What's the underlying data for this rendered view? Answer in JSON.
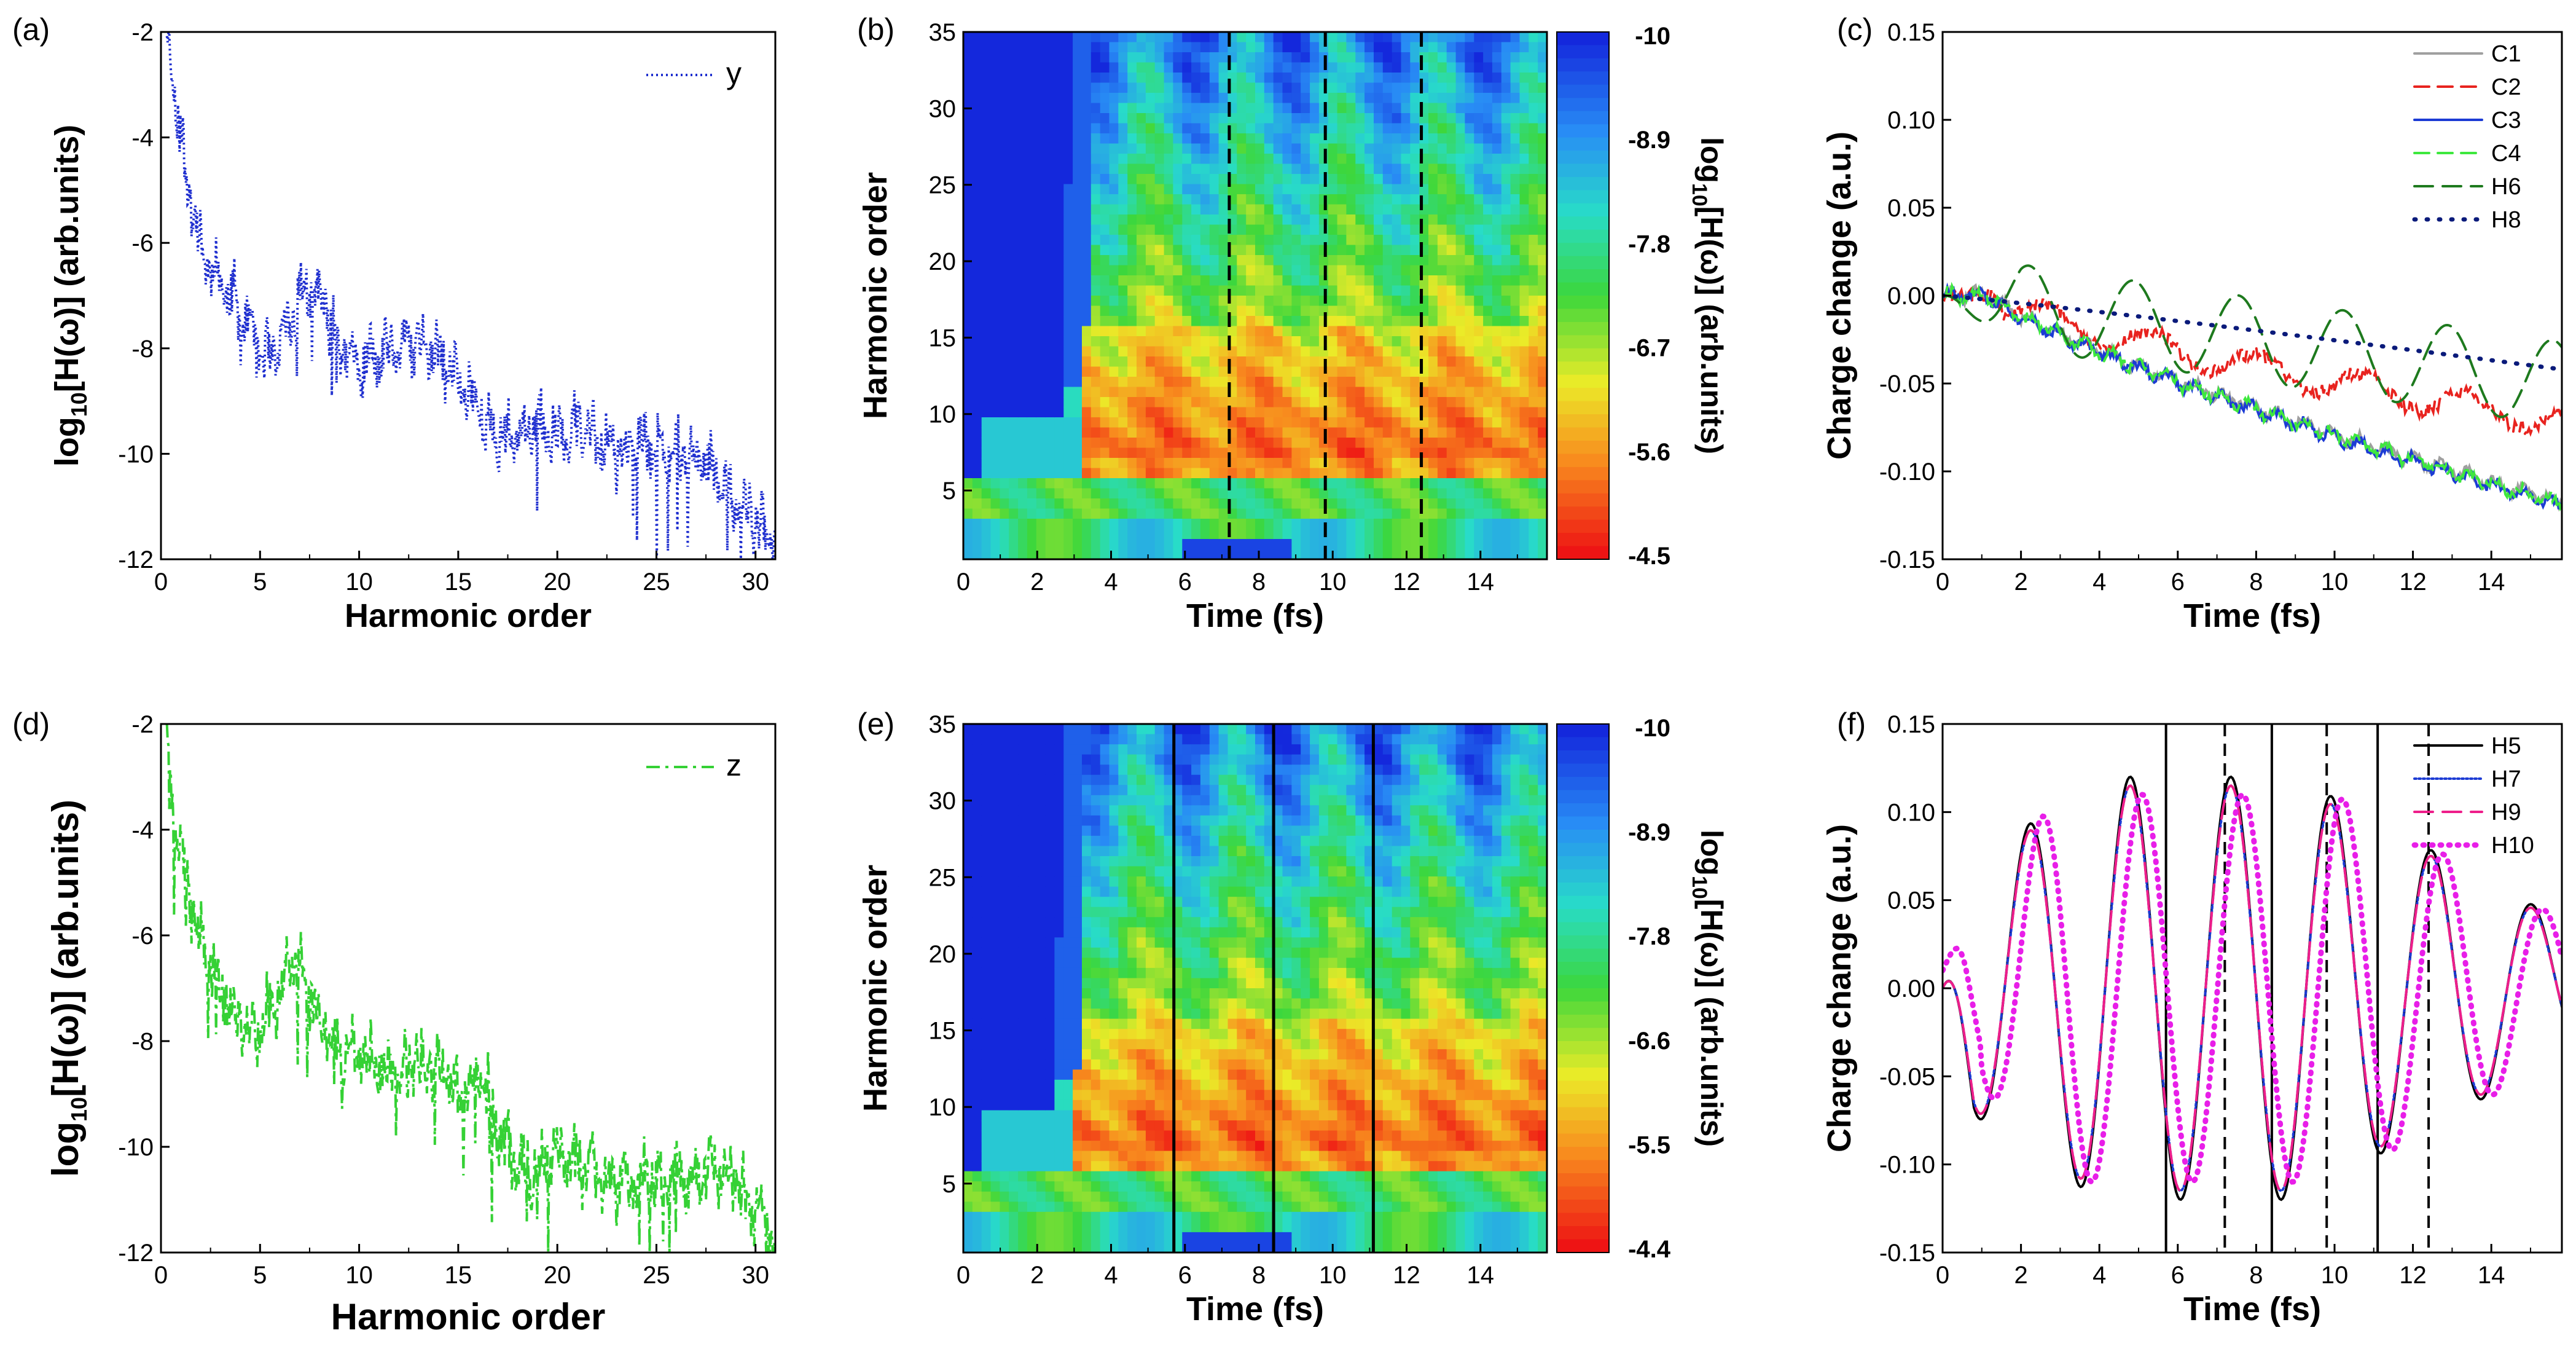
{
  "figure_title": "",
  "chart_data": [
    {
      "id": "a",
      "panel_label": "(a)",
      "type": "line",
      "xlabel": "Harmonic order",
      "ylabel_main": "log",
      "ylabel_sub": "10",
      "ylabel_rest": "[H(ω)] (arb.units)",
      "xlim": [
        0,
        31
      ],
      "ylim": [
        -12,
        -2
      ],
      "xticks": [
        "0",
        "5",
        "10",
        "15",
        "20",
        "25",
        "30"
      ],
      "yticks": [
        "-2",
        "-4",
        "-6",
        "-8",
        "-10",
        "-12"
      ],
      "series": [
        {
          "name": "y",
          "color": "#1f2fcf",
          "dash": "dotted",
          "envelope": [
            [
              0.4,
              -2
            ],
            [
              0.8,
              -3.5
            ],
            [
              1.2,
              -4.6
            ],
            [
              1.6,
              -5.3
            ],
            [
              2,
              -6.1
            ],
            [
              2.5,
              -6.4
            ],
            [
              3,
              -6.7
            ],
            [
              3.5,
              -7.0
            ],
            [
              4,
              -7.3
            ],
            [
              4.5,
              -7.6
            ],
            [
              5,
              -8.0
            ],
            [
              5.5,
              -8.3
            ],
            [
              6,
              -8.0
            ],
            [
              6.5,
              -7.5
            ],
            [
              7,
              -7.0
            ],
            [
              7.5,
              -6.9
            ],
            [
              8,
              -7.0
            ],
            [
              8.5,
              -7.4
            ],
            [
              9,
              -8.0
            ],
            [
              9.5,
              -8.2
            ],
            [
              10,
              -8.3
            ],
            [
              11,
              -8.2
            ],
            [
              12,
              -8.0
            ],
            [
              13,
              -7.9
            ],
            [
              14,
              -8.2
            ],
            [
              15,
              -8.6
            ],
            [
              16,
              -9.0
            ],
            [
              16.5,
              -9.6
            ],
            [
              17,
              -9.7
            ],
            [
              18,
              -9.6
            ],
            [
              19,
              -9.5
            ],
            [
              20,
              -9.6
            ],
            [
              21,
              -9.5
            ],
            [
              22,
              -9.7
            ],
            [
              23,
              -10.0
            ],
            [
              24,
              -9.8
            ],
            [
              25,
              -9.9
            ],
            [
              26,
              -10.0
            ],
            [
              27,
              -10.1
            ],
            [
              28,
              -10.3
            ],
            [
              29,
              -10.9
            ],
            [
              30,
              -11.2
            ],
            [
              31,
              -11.8
            ]
          ],
          "noise": 0.45,
          "seed": 11
        }
      ]
    },
    {
      "id": "b",
      "panel_label": "(b)",
      "type": "heatmap",
      "xlabel": "Time (fs)",
      "ylabel": "Harmonic order",
      "xlim": [
        0,
        15.8
      ],
      "ylim": [
        0.5,
        35
      ],
      "xticks": [
        "0",
        "2",
        "4",
        "6",
        "8",
        "10",
        "12",
        "14"
      ],
      "yticks": [
        "5",
        "10",
        "15",
        "20",
        "25",
        "30",
        "35"
      ],
      "colorbar_ticks": [
        "-10",
        "-8.9",
        "-7.8",
        "-6.7",
        "-5.6",
        "-4.5"
      ],
      "colorbar_label_main": "log",
      "colorbar_label_sub": "10",
      "colorbar_label_rest": "[H(ω)] (arb.units)",
      "vlines": [
        7.2,
        9.8,
        12.4
      ],
      "vline_style": "dashed",
      "onset_time": 3.2,
      "seed": 23
    },
    {
      "id": "c",
      "panel_label": "(c)",
      "type": "line",
      "xlabel": "Time (fs)",
      "ylabel": "Charge change (a.u.)",
      "xlim": [
        0,
        15.8
      ],
      "ylim": [
        -0.15,
        0.15
      ],
      "xticks": [
        "0",
        "2",
        "4",
        "6",
        "8",
        "10",
        "12",
        "14"
      ],
      "yticks": [
        "0.15",
        "0.10",
        "0.05",
        "0.00",
        "-0.05",
        "-0.10",
        "-0.15"
      ],
      "legend_position": "top-right",
      "series": [
        {
          "name": "C1",
          "color": "#a0a0a0",
          "dash": "solid",
          "kind": "decay",
          "final": -0.118,
          "noise": 0.003,
          "seed": 31
        },
        {
          "name": "C2",
          "color": "#e8231f",
          "dash": "dashed",
          "kind": "decay_osc",
          "final": -0.072,
          "noise": 0.004,
          "seed": 32
        },
        {
          "name": "C3",
          "color": "#1c3bd4",
          "dash": "solid",
          "kind": "decay",
          "final": -0.12,
          "noise": 0.003,
          "seed": 33
        },
        {
          "name": "C4",
          "color": "#3ee83e",
          "dash": "dashed",
          "kind": "decay",
          "final": -0.119,
          "noise": 0.003,
          "seed": 34
        },
        {
          "name": "H6",
          "color": "#1e7a1e",
          "dash": "longdash",
          "kind": "h6",
          "final": -0.05,
          "noise": 0.0,
          "seed": 35
        },
        {
          "name": "H8",
          "color": "#0a1a7a",
          "dash": "dots",
          "kind": "linear",
          "final": -0.042,
          "noise": 0.0,
          "seed": 36
        }
      ]
    },
    {
      "id": "d",
      "panel_label": "(d)",
      "type": "line",
      "xlabel": "Harmonic order",
      "ylabel_main": "log",
      "ylabel_sub": "10",
      "ylabel_rest": "[H(ω)] (arb.units)",
      "xlim": [
        0,
        31
      ],
      "ylim": [
        -12,
        -2
      ],
      "xticks": [
        "0",
        "5",
        "10",
        "15",
        "20",
        "25",
        "30"
      ],
      "yticks": [
        "-2",
        "-4",
        "-6",
        "-8",
        "-10",
        "-12"
      ],
      "series": [
        {
          "name": "z",
          "color": "#35d135",
          "dash": "dashdot",
          "envelope": [
            [
              0.3,
              -2
            ],
            [
              0.6,
              -3.5
            ],
            [
              1,
              -4.5
            ],
            [
              1.5,
              -5.3
            ],
            [
              2,
              -6.0
            ],
            [
              2.5,
              -6.6
            ],
            [
              3,
              -7.0
            ],
            [
              3.5,
              -7.3
            ],
            [
              4,
              -7.6
            ],
            [
              4.5,
              -7.8
            ],
            [
              5,
              -7.7
            ],
            [
              5.5,
              -7.4
            ],
            [
              6,
              -7.0
            ],
            [
              6.5,
              -6.6
            ],
            [
              7,
              -6.4
            ],
            [
              7.5,
              -7.0
            ],
            [
              8,
              -7.6
            ],
            [
              8.5,
              -8.0
            ],
            [
              9,
              -8.2
            ],
            [
              10,
              -8.3
            ],
            [
              11,
              -8.5
            ],
            [
              12,
              -8.6
            ],
            [
              13,
              -8.4
            ],
            [
              14,
              -8.6
            ],
            [
              15,
              -9.0
            ],
            [
              16,
              -8.6
            ],
            [
              16.5,
              -9.0
            ],
            [
              17,
              -9.8
            ],
            [
              18,
              -10.3
            ],
            [
              19,
              -10.5
            ],
            [
              20,
              -10.2
            ],
            [
              21,
              -10.3
            ],
            [
              22,
              -10.5
            ],
            [
              23,
              -10.8
            ],
            [
              24,
              -10.5
            ],
            [
              25,
              -10.7
            ],
            [
              26,
              -10.5
            ],
            [
              27,
              -10.6
            ],
            [
              28,
              -10.4
            ],
            [
              29,
              -10.6
            ],
            [
              30,
              -11.2
            ],
            [
              31,
              -11.8
            ]
          ],
          "noise": 0.5,
          "seed": 41
        }
      ]
    },
    {
      "id": "e",
      "panel_label": "(e)",
      "type": "heatmap",
      "xlabel": "Time (fs)",
      "ylabel": "Harmonic order",
      "xlim": [
        0,
        15.8
      ],
      "ylim": [
        0.5,
        35
      ],
      "xticks": [
        "0",
        "2",
        "4",
        "6",
        "8",
        "10",
        "12",
        "14"
      ],
      "yticks": [
        "5",
        "10",
        "15",
        "20",
        "25",
        "30",
        "35"
      ],
      "colorbar_ticks": [
        "-10",
        "-8.9",
        "-7.8",
        "-6.6",
        "-5.5",
        "-4.4"
      ],
      "colorbar_label_main": "log",
      "colorbar_label_sub": "10",
      "colorbar_label_rest": "[H(ω)] (arb.units)",
      "vlines": [
        5.7,
        8.4,
        11.1
      ],
      "vline_style": "solid",
      "onset_time": 3.0,
      "seed": 57
    },
    {
      "id": "f",
      "panel_label": "(f)",
      "type": "line",
      "xlabel": "Time (fs)",
      "ylabel": "Charge change (a.u.)",
      "xlim": [
        0,
        15.8
      ],
      "ylim": [
        -0.15,
        0.15
      ],
      "xticks": [
        "0",
        "2",
        "4",
        "6",
        "8",
        "10",
        "12",
        "14"
      ],
      "yticks": [
        "0.15",
        "0.10",
        "0.05",
        "0.00",
        "-0.05",
        "-0.10",
        "-0.15"
      ],
      "legend_position": "top-right",
      "vlines_solid": [
        5.7,
        8.4,
        11.1
      ],
      "vlines_dashed": [
        7.2,
        9.8,
        12.4
      ],
      "series": [
        {
          "name": "H5",
          "color": "#000000",
          "dash": "solid",
          "kind": "osc",
          "amp": 0.12,
          "phase": 0.0
        },
        {
          "name": "H7",
          "color": "#1c3bd4",
          "dash": "dots_fine",
          "kind": "osc",
          "amp": 0.115,
          "phase": 0.0
        },
        {
          "name": "H9",
          "color": "#ee1e8a",
          "dash": "longdash",
          "kind": "osc",
          "amp": 0.115,
          "phase": 0.0
        },
        {
          "name": "H10",
          "color": "#e81ee8",
          "dash": "bigdots",
          "kind": "osc_anti",
          "amp": 0.11,
          "phase": 1.0
        }
      ]
    }
  ]
}
